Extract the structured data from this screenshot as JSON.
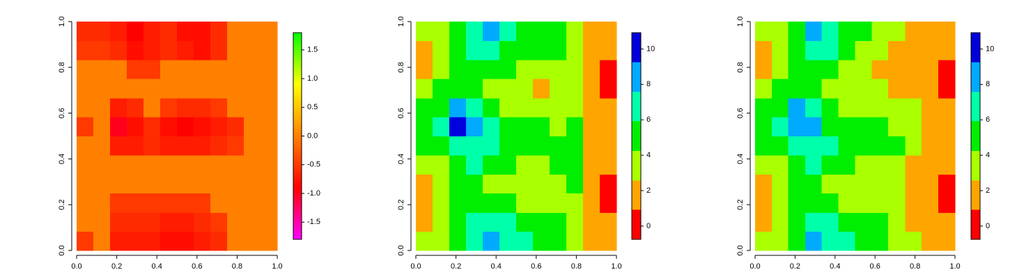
{
  "chart_data": [
    {
      "type": "heatmap",
      "x": [
        0.042,
        0.125,
        0.208,
        0.292,
        0.375,
        0.458,
        0.542,
        0.625,
        0.708,
        0.792,
        0.875,
        0.958
      ],
      "y": [
        0.042,
        0.125,
        0.208,
        0.292,
        0.375,
        0.458,
        0.542,
        0.625,
        0.708,
        0.792,
        0.875,
        0.958
      ],
      "z": [
        [
          -0.5,
          0,
          -0.7,
          -0.7,
          -0.7,
          -0.8,
          -0.8,
          -0.7,
          -0.6,
          0,
          0,
          0
        ],
        [
          0,
          0,
          -0.6,
          -0.6,
          -0.6,
          -0.7,
          -0.7,
          -0.6,
          -0.5,
          0,
          0,
          0
        ],
        [
          0,
          0,
          -0.5,
          -0.5,
          -0.5,
          -0.5,
          -0.5,
          -0.5,
          0,
          0,
          0,
          0
        ],
        [
          0,
          0,
          0,
          0,
          0,
          0,
          0,
          0,
          0,
          0,
          0,
          0
        ],
        [
          0,
          0,
          0,
          0,
          0,
          0,
          0,
          0,
          0,
          0,
          0,
          0
        ],
        [
          0,
          0,
          -0.7,
          -0.7,
          -0.6,
          -0.7,
          -0.7,
          -0.7,
          -0.6,
          -0.5,
          0,
          0
        ],
        [
          -0.5,
          0,
          -1.0,
          -0.8,
          -0.6,
          -0.8,
          -0.9,
          -0.8,
          -0.7,
          -0.6,
          0,
          0
        ],
        [
          0,
          0,
          -0.7,
          -0.6,
          0,
          -0.5,
          -0.6,
          -0.6,
          -0.5,
          0,
          0,
          0
        ],
        [
          0,
          0,
          0,
          0,
          0,
          0,
          0,
          0,
          0,
          0,
          0,
          0
        ],
        [
          0,
          0,
          0,
          -0.5,
          -0.5,
          0,
          0,
          0,
          0,
          0,
          0,
          0
        ],
        [
          -0.5,
          -0.5,
          -0.6,
          -0.8,
          -0.7,
          -0.6,
          -0.7,
          -0.8,
          -0.6,
          0,
          0,
          0
        ],
        [
          -0.6,
          -0.6,
          -0.7,
          -0.9,
          -0.7,
          -0.6,
          -0.8,
          -0.8,
          -0.6,
          0,
          0,
          0
        ]
      ],
      "xlim": [
        0,
        1
      ],
      "ylim": [
        0,
        1
      ],
      "xticks": [
        {
          "value": 0,
          "label": "0.0"
        },
        0.2,
        0.4,
        0.6,
        0.8,
        {
          "value": 1,
          "label": "1.0"
        }
      ],
      "yticks": [
        {
          "value": 0,
          "label": "0.0"
        },
        0.2,
        0.4,
        0.6,
        0.8,
        {
          "value": 1,
          "label": "1.0"
        }
      ],
      "colorbar": {
        "lim": [
          -1.8,
          1.8
        ],
        "ticks": [
          -1.5,
          {
            "value": -1,
            "label": "-1.0"
          },
          -0.5,
          {
            "value": 0,
            "label": "0.0"
          },
          0.5,
          {
            "value": 1,
            "label": "1.0"
          },
          1.5
        ],
        "colors": [
          "#ff00ff",
          "#ff0000",
          "#ff8000",
          "#ffff00",
          "#00ff00"
        ]
      }
    },
    {
      "type": "heatmap",
      "x": [
        0.042,
        0.125,
        0.208,
        0.292,
        0.375,
        0.458,
        0.542,
        0.625,
        0.708,
        0.792,
        0.875,
        0.958
      ],
      "y": [
        0.042,
        0.125,
        0.208,
        0.292,
        0.375,
        0.458,
        0.542,
        0.625,
        0.708,
        0.792,
        0.875,
        0.958
      ],
      "z": [
        [
          3.4,
          3.4,
          5,
          6.7,
          8.4,
          6.7,
          6.7,
          5,
          5,
          3.4,
          1.8,
          1.8
        ],
        [
          1.8,
          3.4,
          5,
          6.7,
          6.7,
          6.7,
          5,
          5,
          5,
          3.4,
          1.8,
          1.8
        ],
        [
          1.8,
          3.4,
          5,
          5,
          5,
          5,
          3.4,
          3.4,
          3.4,
          3.4,
          1.8,
          0
        ],
        [
          1.8,
          3.4,
          5,
          5,
          3.4,
          3.4,
          3.4,
          3.4,
          3.4,
          5,
          1.8,
          0
        ],
        [
          3.4,
          3.4,
          5,
          6.7,
          5,
          5,
          3.4,
          3.4,
          5,
          5,
          1.8,
          1.8
        ],
        [
          5,
          5,
          6.7,
          6.7,
          6.7,
          5,
          5,
          5,
          5,
          5,
          1.8,
          1.8
        ],
        [
          5,
          6.7,
          10,
          8.4,
          6.7,
          5,
          5,
          5,
          3.4,
          5,
          1.8,
          1.8
        ],
        [
          5,
          5,
          8.4,
          6.7,
          5,
          3.4,
          3.4,
          3.4,
          3.4,
          3.4,
          1.8,
          1.8
        ],
        [
          3.4,
          5,
          5,
          5,
          3.4,
          3.4,
          3.4,
          1.8,
          3.4,
          3.4,
          1.8,
          0
        ],
        [
          1.8,
          3.4,
          5,
          5,
          5,
          5,
          3.4,
          3.4,
          3.4,
          3.4,
          1.8,
          0
        ],
        [
          1.8,
          3.4,
          5,
          6.7,
          6.7,
          5,
          5,
          5,
          5,
          3.4,
          1.8,
          1.8
        ],
        [
          3.4,
          3.4,
          5,
          6.7,
          8.4,
          6.7,
          5,
          5,
          5,
          3.4,
          1.8,
          1.8
        ]
      ],
      "xlim": [
        0,
        1
      ],
      "ylim": [
        0,
        1
      ],
      "xticks": [
        {
          "value": 0,
          "label": "0.0"
        },
        0.2,
        0.4,
        0.6,
        0.8,
        {
          "value": 1,
          "label": "1.0"
        }
      ],
      "yticks": [
        {
          "value": 0,
          "label": "0.0"
        },
        0.2,
        0.4,
        0.6,
        0.8,
        {
          "value": 1,
          "label": "1.0"
        }
      ],
      "colorbar": {
        "lim": [
          -0.75,
          10.92
        ],
        "ticks": [
          0,
          2,
          4,
          6,
          8,
          10
        ],
        "levels": [
          -0.75,
          0.92,
          2.58,
          4.25,
          5.92,
          7.58,
          9.25,
          10.92
        ],
        "colors": [
          "#ff0000",
          "#ffa500",
          "#aaff00",
          "#00ee00",
          "#00ffaa",
          "#00aaff",
          "#0000dd"
        ]
      }
    },
    {
      "type": "heatmap",
      "x": [
        0.042,
        0.125,
        0.208,
        0.292,
        0.375,
        0.458,
        0.542,
        0.625,
        0.708,
        0.792,
        0.875,
        0.958
      ],
      "y": [
        0.042,
        0.125,
        0.208,
        0.292,
        0.375,
        0.458,
        0.542,
        0.625,
        0.708,
        0.792,
        0.875,
        0.958
      ],
      "z": [
        [
          3.4,
          3.4,
          5,
          8.4,
          6.7,
          6.7,
          5,
          5,
          3.4,
          3.4,
          1.8,
          1.8
        ],
        [
          1.8,
          3.4,
          5,
          6.7,
          6.7,
          5,
          5,
          5,
          3.4,
          1.8,
          1.8,
          1.8
        ],
        [
          1.8,
          3.4,
          5,
          5,
          5,
          3.4,
          3.4,
          3.4,
          3.4,
          1.8,
          1.8,
          0
        ],
        [
          1.8,
          3.4,
          5,
          5,
          3.4,
          3.4,
          3.4,
          3.4,
          3.4,
          1.8,
          1.8,
          0
        ],
        [
          3.4,
          3.4,
          5,
          6.7,
          5,
          5,
          3.4,
          3.4,
          3.4,
          1.8,
          1.8,
          1.8
        ],
        [
          5,
          5,
          6.7,
          6.7,
          6.7,
          5,
          5,
          5,
          5,
          3.4,
          1.8,
          1.8
        ],
        [
          5,
          6.7,
          8.4,
          8.4,
          5,
          5,
          5,
          5,
          3.4,
          3.4,
          1.8,
          1.8
        ],
        [
          5,
          5,
          8.4,
          6.7,
          5,
          3.4,
          3.4,
          3.4,
          3.4,
          3.4,
          1.8,
          1.8
        ],
        [
          3.4,
          5,
          5,
          5,
          3.4,
          3.4,
          3.4,
          3.4,
          1.8,
          1.8,
          1.8,
          0
        ],
        [
          1.8,
          3.4,
          5,
          5,
          5,
          3.4,
          3.4,
          1.8,
          1.8,
          1.8,
          1.8,
          0
        ],
        [
          1.8,
          3.4,
          5,
          6.7,
          6.7,
          5,
          3.4,
          3.4,
          1.8,
          1.8,
          1.8,
          1.8
        ],
        [
          3.4,
          3.4,
          5,
          8.4,
          6.7,
          5,
          5,
          3.4,
          3.4,
          1.8,
          1.8,
          1.8
        ]
      ],
      "xlim": [
        0,
        1
      ],
      "ylim": [
        0,
        1
      ],
      "xticks": [
        {
          "value": 0,
          "label": "0.0"
        },
        0.2,
        0.4,
        0.6,
        0.8,
        {
          "value": 1,
          "label": "1.0"
        }
      ],
      "yticks": [
        {
          "value": 0,
          "label": "0.0"
        },
        0.2,
        0.4,
        0.6,
        0.8,
        {
          "value": 1,
          "label": "1.0"
        }
      ],
      "colorbar": {
        "lim": [
          -0.75,
          10.92
        ],
        "ticks": [
          0,
          2,
          4,
          6,
          8,
          10
        ],
        "levels": [
          -0.75,
          0.92,
          2.58,
          4.25,
          5.92,
          7.58,
          9.25,
          10.92
        ],
        "colors": [
          "#ff0000",
          "#ffa500",
          "#aaff00",
          "#00ee00",
          "#00ffaa",
          "#00aaff",
          "#0000dd"
        ]
      }
    }
  ]
}
